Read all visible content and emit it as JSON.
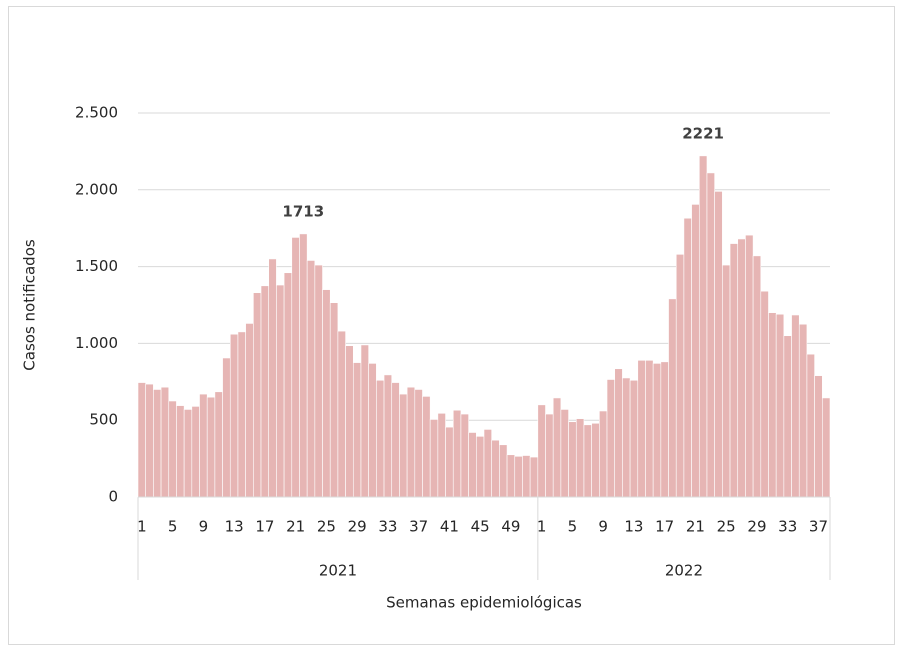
{
  "chart_data": {
    "type": "bar",
    "y_label": "Casos notificados",
    "x_label": "Semanas epidemiológicas",
    "color": "#e6b5b4",
    "ylim": [
      0,
      2500
    ],
    "yticks": [
      0,
      500,
      {
        "value": 1000,
        "label": "1.000"
      },
      {
        "value": 1500,
        "label": "1.500"
      },
      {
        "value": 2000,
        "label": "2.000"
      },
      {
        "value": 2500,
        "label": "2.500"
      }
    ],
    "grid": true,
    "groups": [
      {
        "name": "2021",
        "categories": [
          "1",
          null,
          null,
          null,
          "5",
          null,
          null,
          null,
          "9",
          null,
          null,
          null,
          "13",
          null,
          null,
          null,
          "17",
          null,
          null,
          null,
          "21",
          null,
          null,
          null,
          "25",
          null,
          null,
          null,
          "29",
          null,
          null,
          null,
          "33",
          null,
          null,
          null,
          "37",
          null,
          null,
          null,
          "41",
          null,
          null,
          null,
          "45",
          null,
          null,
          null,
          "49",
          null,
          null,
          null
        ],
        "values": [
          745,
          735,
          700,
          715,
          625,
          595,
          570,
          590,
          670,
          650,
          685,
          905,
          1060,
          1075,
          1130,
          1330,
          1375,
          1550,
          1380,
          1460,
          1690,
          1713,
          1540,
          1510,
          1350,
          1265,
          1080,
          985,
          875,
          990,
          870,
          760,
          795,
          745,
          670,
          715,
          700,
          655,
          505,
          545,
          455,
          565,
          540,
          420,
          395,
          440,
          370,
          340,
          275,
          265,
          270,
          260
        ],
        "value_labels": [
          null,
          null,
          null,
          null,
          null,
          null,
          null,
          null,
          null,
          null,
          null,
          null,
          null,
          null,
          null,
          null,
          null,
          null,
          null,
          null,
          null,
          "1713",
          null,
          null,
          null,
          null,
          null,
          null,
          null,
          null,
          null,
          null,
          null,
          null,
          null,
          null,
          null,
          null,
          null,
          null,
          null,
          null,
          null,
          null,
          null,
          null,
          null,
          null,
          null,
          null,
          null,
          null
        ]
      },
      {
        "name": "2022",
        "categories": [
          "1",
          null,
          null,
          null,
          "5",
          null,
          null,
          null,
          "9",
          null,
          null,
          null,
          "13",
          null,
          null,
          null,
          "17",
          null,
          null,
          null,
          "21",
          null,
          null,
          null,
          "25",
          null,
          null,
          null,
          "29",
          null,
          null,
          null,
          "33",
          null,
          null,
          null,
          "37",
          null
        ],
        "values": [
          600,
          540,
          645,
          570,
          490,
          510,
          470,
          480,
          560,
          765,
          835,
          775,
          760,
          890,
          890,
          870,
          880,
          1290,
          1580,
          1815,
          1905,
          2221,
          2110,
          1990,
          1510,
          1650,
          1680,
          1705,
          1570,
          1340,
          1200,
          1190,
          1050,
          1185,
          1125,
          930,
          790,
          645
        ],
        "value_labels": [
          null,
          null,
          null,
          null,
          null,
          null,
          null,
          null,
          null,
          null,
          null,
          null,
          null,
          null,
          null,
          null,
          null,
          null,
          null,
          null,
          null,
          "2221",
          null,
          null,
          null,
          null,
          null,
          null,
          null,
          null,
          null,
          null,
          null,
          null,
          null,
          null,
          null,
          null
        ]
      }
    ]
  }
}
